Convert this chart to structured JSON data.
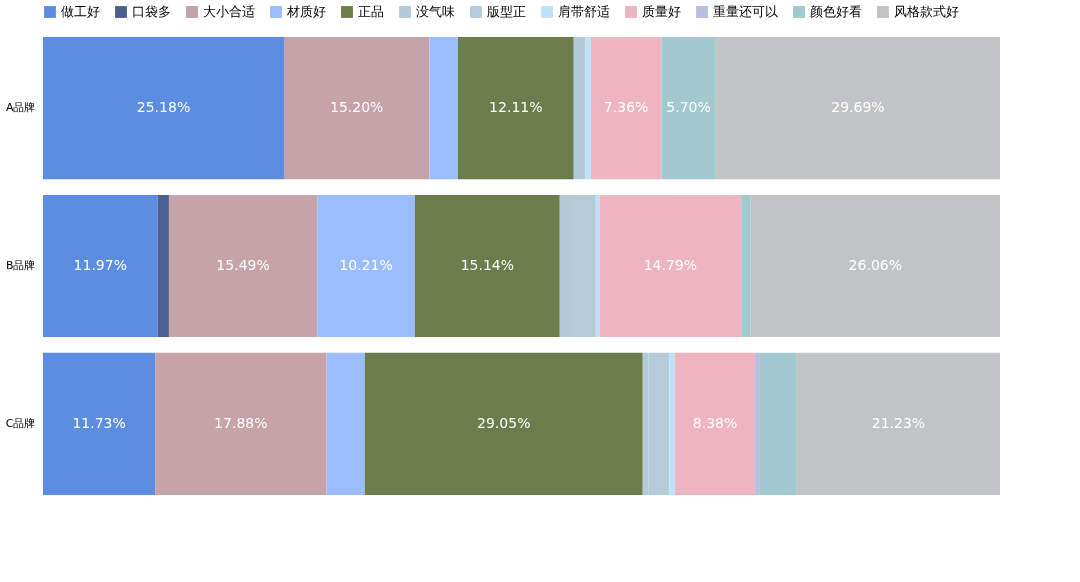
{
  "chart_data": {
    "type": "bar",
    "orientation": "horizontal",
    "stacked": true,
    "legend": "top",
    "grid": false,
    "tick_labels": "y",
    "categories": [
      "A品牌",
      "B品牌",
      "C品牌"
    ],
    "series": [
      {
        "name": "做工好",
        "color": "#5b8ee0",
        "values": [
          25.18,
          11.97,
          11.73
        ],
        "value_labels": [
          "25.18%",
          "11.97%",
          "11.73%"
        ]
      },
      {
        "name": "口袋多",
        "color": "#4a6192",
        "values": [
          0,
          1.19,
          0
        ],
        "value_labels": [
          null,
          null,
          null
        ]
      },
      {
        "name": "大小合适",
        "color": "#c5a3a8",
        "values": [
          15.2,
          15.49,
          17.88
        ],
        "value_labels": [
          "15.20%",
          "15.49%",
          "17.88%"
        ]
      },
      {
        "name": "材质好",
        "color": "#9bbdfb",
        "values": [
          2.97,
          10.21,
          4.01
        ],
        "value_labels": [
          null,
          "10.21%",
          null
        ]
      },
      {
        "name": "正品",
        "color": "#6a7d4b",
        "values": [
          12.11,
          15.14,
          29.05
        ],
        "value_labels": [
          "12.11%",
          "15.14%",
          "29.05%"
        ]
      },
      {
        "name": "没气味",
        "color": "#b3cbd9",
        "values": [
          1.19,
          1.48,
          0.59
        ],
        "value_labels": [
          null,
          null,
          null
        ]
      },
      {
        "name": "版型正",
        "color": "#b5cbd8",
        "values": [
          0,
          2.28,
          2.18
        ],
        "value_labels": [
          null,
          null,
          null
        ]
      },
      {
        "name": "肩带舒适",
        "color": "#bde3fa",
        "values": [
          0.6,
          0.4,
          0.59
        ],
        "value_labels": [
          null,
          null,
          null
        ]
      },
      {
        "name": "质量好",
        "color": "#eeb4c0",
        "values": [
          7.36,
          14.79,
          8.38
        ],
        "value_labels": [
          "7.36%",
          "14.79%",
          "8.38%"
        ]
      },
      {
        "name": "重量还可以",
        "color": "#b6bfe0",
        "values": [
          0,
          0,
          0.5
        ],
        "value_labels": [
          null,
          null,
          null
        ]
      },
      {
        "name": "颜色好看",
        "color": "#a3c9d0",
        "values": [
          5.7,
          0.99,
          3.86
        ],
        "value_labels": [
          "5.70%",
          null,
          null
        ]
      },
      {
        "name": "风格款式好",
        "color": "#c2c3c5",
        "values": [
          29.69,
          26.06,
          21.23
        ],
        "value_labels": [
          "29.69%",
          "26.06%",
          "21.23%"
        ]
      }
    ]
  }
}
